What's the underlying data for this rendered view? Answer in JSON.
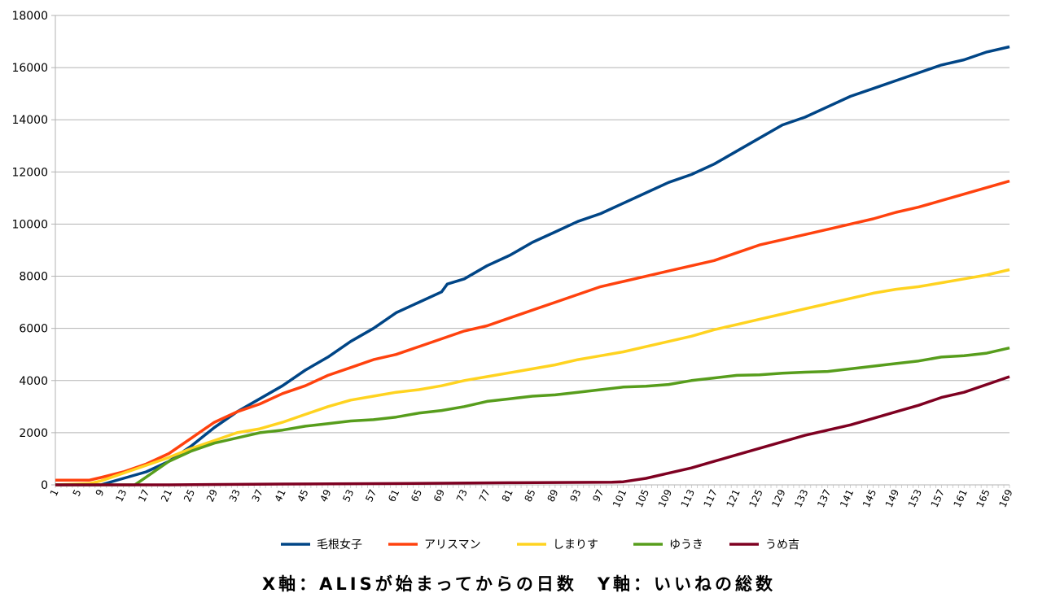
{
  "chart_data": {
    "type": "line",
    "title": "",
    "xlabel": "X軸：ALISが始まってからの日数　Y軸：いいねの総数",
    "ylabel": "",
    "ylim": [
      0,
      18000
    ],
    "yticks": [
      0,
      2000,
      4000,
      6000,
      8000,
      10000,
      12000,
      14000,
      16000,
      18000
    ],
    "xlim": [
      1,
      169
    ],
    "xticks": [
      1,
      5,
      9,
      13,
      17,
      21,
      25,
      29,
      33,
      37,
      41,
      45,
      49,
      53,
      57,
      61,
      65,
      69,
      73,
      77,
      81,
      85,
      89,
      93,
      97,
      101,
      105,
      109,
      113,
      117,
      121,
      125,
      129,
      133,
      137,
      141,
      145,
      149,
      153,
      157,
      161,
      165,
      169
    ],
    "grid": true,
    "legend_position": "bottom",
    "series": [
      {
        "name": "毛根女子",
        "color": "#004586",
        "points": [
          [
            1,
            0
          ],
          [
            9,
            0
          ],
          [
            13,
            250
          ],
          [
            17,
            500
          ],
          [
            21,
            900
          ],
          [
            25,
            1500
          ],
          [
            29,
            2200
          ],
          [
            33,
            2800
          ],
          [
            37,
            3300
          ],
          [
            41,
            3800
          ],
          [
            45,
            4400
          ],
          [
            49,
            4900
          ],
          [
            53,
            5500
          ],
          [
            57,
            6000
          ],
          [
            61,
            6600
          ],
          [
            65,
            7000
          ],
          [
            69,
            7400
          ],
          [
            70,
            7700
          ],
          [
            73,
            7900
          ],
          [
            77,
            8400
          ],
          [
            81,
            8800
          ],
          [
            85,
            9300
          ],
          [
            89,
            9700
          ],
          [
            93,
            10100
          ],
          [
            97,
            10400
          ],
          [
            101,
            10800
          ],
          [
            105,
            11200
          ],
          [
            109,
            11600
          ],
          [
            113,
            11900
          ],
          [
            117,
            12300
          ],
          [
            121,
            12800
          ],
          [
            125,
            13300
          ],
          [
            129,
            13800
          ],
          [
            133,
            14100
          ],
          [
            137,
            14500
          ],
          [
            141,
            14900
          ],
          [
            145,
            15200
          ],
          [
            149,
            15500
          ],
          [
            153,
            15800
          ],
          [
            157,
            16100
          ],
          [
            161,
            16300
          ],
          [
            165,
            16600
          ],
          [
            169,
            16800
          ]
        ]
      },
      {
        "name": "アリスマン",
        "color": "#ff420e",
        "points": [
          [
            1,
            180
          ],
          [
            7,
            180
          ],
          [
            9,
            280
          ],
          [
            13,
            500
          ],
          [
            17,
            800
          ],
          [
            21,
            1200
          ],
          [
            25,
            1800
          ],
          [
            29,
            2400
          ],
          [
            33,
            2800
          ],
          [
            37,
            3100
          ],
          [
            41,
            3500
          ],
          [
            45,
            3800
          ],
          [
            49,
            4200
          ],
          [
            53,
            4500
          ],
          [
            57,
            4800
          ],
          [
            61,
            5000
          ],
          [
            65,
            5300
          ],
          [
            69,
            5600
          ],
          [
            73,
            5900
          ],
          [
            77,
            6100
          ],
          [
            81,
            6400
          ],
          [
            85,
            6700
          ],
          [
            89,
            7000
          ],
          [
            93,
            7300
          ],
          [
            97,
            7600
          ],
          [
            101,
            7800
          ],
          [
            105,
            8000
          ],
          [
            109,
            8200
          ],
          [
            113,
            8400
          ],
          [
            117,
            8600
          ],
          [
            121,
            8900
          ],
          [
            125,
            9200
          ],
          [
            129,
            9400
          ],
          [
            133,
            9600
          ],
          [
            137,
            9800
          ],
          [
            141,
            10000
          ],
          [
            145,
            10200
          ],
          [
            149,
            10450
          ],
          [
            153,
            10650
          ],
          [
            157,
            10900
          ],
          [
            161,
            11150
          ],
          [
            165,
            11400
          ],
          [
            169,
            11650
          ]
        ]
      },
      {
        "name": "しまりす",
        "color": "#ffd320",
        "points": [
          [
            1,
            0
          ],
          [
            7,
            50
          ],
          [
            9,
            150
          ],
          [
            13,
            450
          ],
          [
            17,
            750
          ],
          [
            21,
            1050
          ],
          [
            25,
            1400
          ],
          [
            29,
            1700
          ],
          [
            33,
            2000
          ],
          [
            37,
            2150
          ],
          [
            41,
            2400
          ],
          [
            45,
            2700
          ],
          [
            49,
            3000
          ],
          [
            53,
            3250
          ],
          [
            57,
            3400
          ],
          [
            61,
            3550
          ],
          [
            65,
            3650
          ],
          [
            69,
            3800
          ],
          [
            73,
            4000
          ],
          [
            77,
            4150
          ],
          [
            81,
            4300
          ],
          [
            85,
            4450
          ],
          [
            89,
            4600
          ],
          [
            93,
            4800
          ],
          [
            97,
            4950
          ],
          [
            101,
            5100
          ],
          [
            105,
            5300
          ],
          [
            109,
            5500
          ],
          [
            113,
            5700
          ],
          [
            117,
            5950
          ],
          [
            121,
            6150
          ],
          [
            125,
            6350
          ],
          [
            129,
            6550
          ],
          [
            133,
            6750
          ],
          [
            137,
            6950
          ],
          [
            141,
            7150
          ],
          [
            145,
            7350
          ],
          [
            149,
            7500
          ],
          [
            153,
            7600
          ],
          [
            157,
            7750
          ],
          [
            161,
            7900
          ],
          [
            165,
            8050
          ],
          [
            169,
            8250
          ]
        ]
      },
      {
        "name": "ゆうき",
        "color": "#579d1c",
        "points": [
          [
            1,
            0
          ],
          [
            13,
            0
          ],
          [
            15,
            0
          ],
          [
            17,
            300
          ],
          [
            21,
            900
          ],
          [
            25,
            1300
          ],
          [
            29,
            1600
          ],
          [
            33,
            1800
          ],
          [
            37,
            2000
          ],
          [
            41,
            2100
          ],
          [
            45,
            2250
          ],
          [
            49,
            2350
          ],
          [
            53,
            2450
          ],
          [
            57,
            2500
          ],
          [
            61,
            2600
          ],
          [
            65,
            2750
          ],
          [
            69,
            2850
          ],
          [
            73,
            3000
          ],
          [
            77,
            3200
          ],
          [
            81,
            3300
          ],
          [
            85,
            3400
          ],
          [
            89,
            3450
          ],
          [
            93,
            3550
          ],
          [
            97,
            3650
          ],
          [
            101,
            3750
          ],
          [
            105,
            3780
          ],
          [
            109,
            3850
          ],
          [
            113,
            4000
          ],
          [
            117,
            4100
          ],
          [
            121,
            4200
          ],
          [
            125,
            4220
          ],
          [
            129,
            4280
          ],
          [
            133,
            4320
          ],
          [
            137,
            4350
          ],
          [
            141,
            4450
          ],
          [
            145,
            4550
          ],
          [
            149,
            4650
          ],
          [
            153,
            4750
          ],
          [
            157,
            4900
          ],
          [
            161,
            4950
          ],
          [
            165,
            5050
          ],
          [
            169,
            5250
          ]
        ]
      },
      {
        "name": "うめ吉",
        "color": "#7e0021",
        "points": [
          [
            1,
            0
          ],
          [
            21,
            0
          ],
          [
            41,
            30
          ],
          [
            61,
            50
          ],
          [
            81,
            80
          ],
          [
            99,
            100
          ],
          [
            101,
            120
          ],
          [
            105,
            250
          ],
          [
            109,
            450
          ],
          [
            113,
            650
          ],
          [
            117,
            900
          ],
          [
            121,
            1150
          ],
          [
            125,
            1400
          ],
          [
            129,
            1650
          ],
          [
            133,
            1900
          ],
          [
            137,
            2100
          ],
          [
            141,
            2300
          ],
          [
            145,
            2550
          ],
          [
            149,
            2800
          ],
          [
            153,
            3050
          ],
          [
            157,
            3350
          ],
          [
            161,
            3550
          ],
          [
            165,
            3850
          ],
          [
            169,
            4150
          ]
        ]
      }
    ]
  }
}
